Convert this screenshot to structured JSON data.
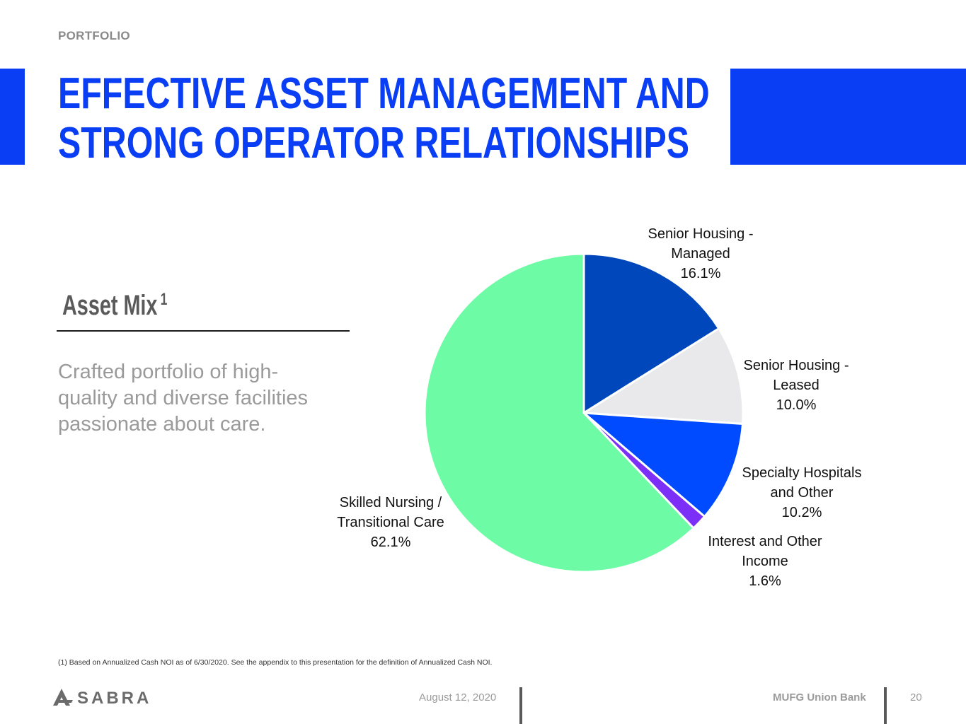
{
  "header": {
    "section": "PORTFOLIO",
    "title_line1": "EFFECTIVE ASSET MANAGEMENT AND",
    "title_line2": "STRONG OPERATOR RELATIONSHIPS",
    "accent_color": "#0a3ef5"
  },
  "left_panel": {
    "subhead": "Asset Mix",
    "subhead_sup": "1",
    "body": "Crafted portfolio of high-quality and diverse facilities passionate about care."
  },
  "chart_data": {
    "type": "pie",
    "title": "",
    "start_angle_deg": 0,
    "direction": "clockwise",
    "slices": [
      {
        "label_line1": "Senior Housing -",
        "label_line2": "Managed",
        "value": 16.1,
        "value_text": "16.1%",
        "color": "#0047bb"
      },
      {
        "label_line1": "Senior Housing -",
        "label_line2": "Leased",
        "value": 10.0,
        "value_text": "10.0%",
        "color": "#e9e9eb"
      },
      {
        "label_line1": "Specialty Hospitals",
        "label_line2": "and Other",
        "value": 10.2,
        "value_text": "10.2%",
        "color": "#004aff"
      },
      {
        "label_line1": "Interest and Other",
        "label_line2": "Income",
        "value": 1.6,
        "value_text": "1.6%",
        "color": "#7b2ff7"
      },
      {
        "label_line1": "Skilled Nursing /",
        "label_line2": "Transitional Care",
        "value": 62.1,
        "value_text": "62.1%",
        "color": "#6efba5"
      }
    ]
  },
  "footer": {
    "footnote": "(1) Based on Annualized Cash NOI as of 6/30/2020. See the appendix to this presentation for the definition of Annualized Cash NOI.",
    "logo_text": "SABRA",
    "date": "August 12, 2020",
    "bank": "MUFG Union Bank",
    "page": "20"
  }
}
